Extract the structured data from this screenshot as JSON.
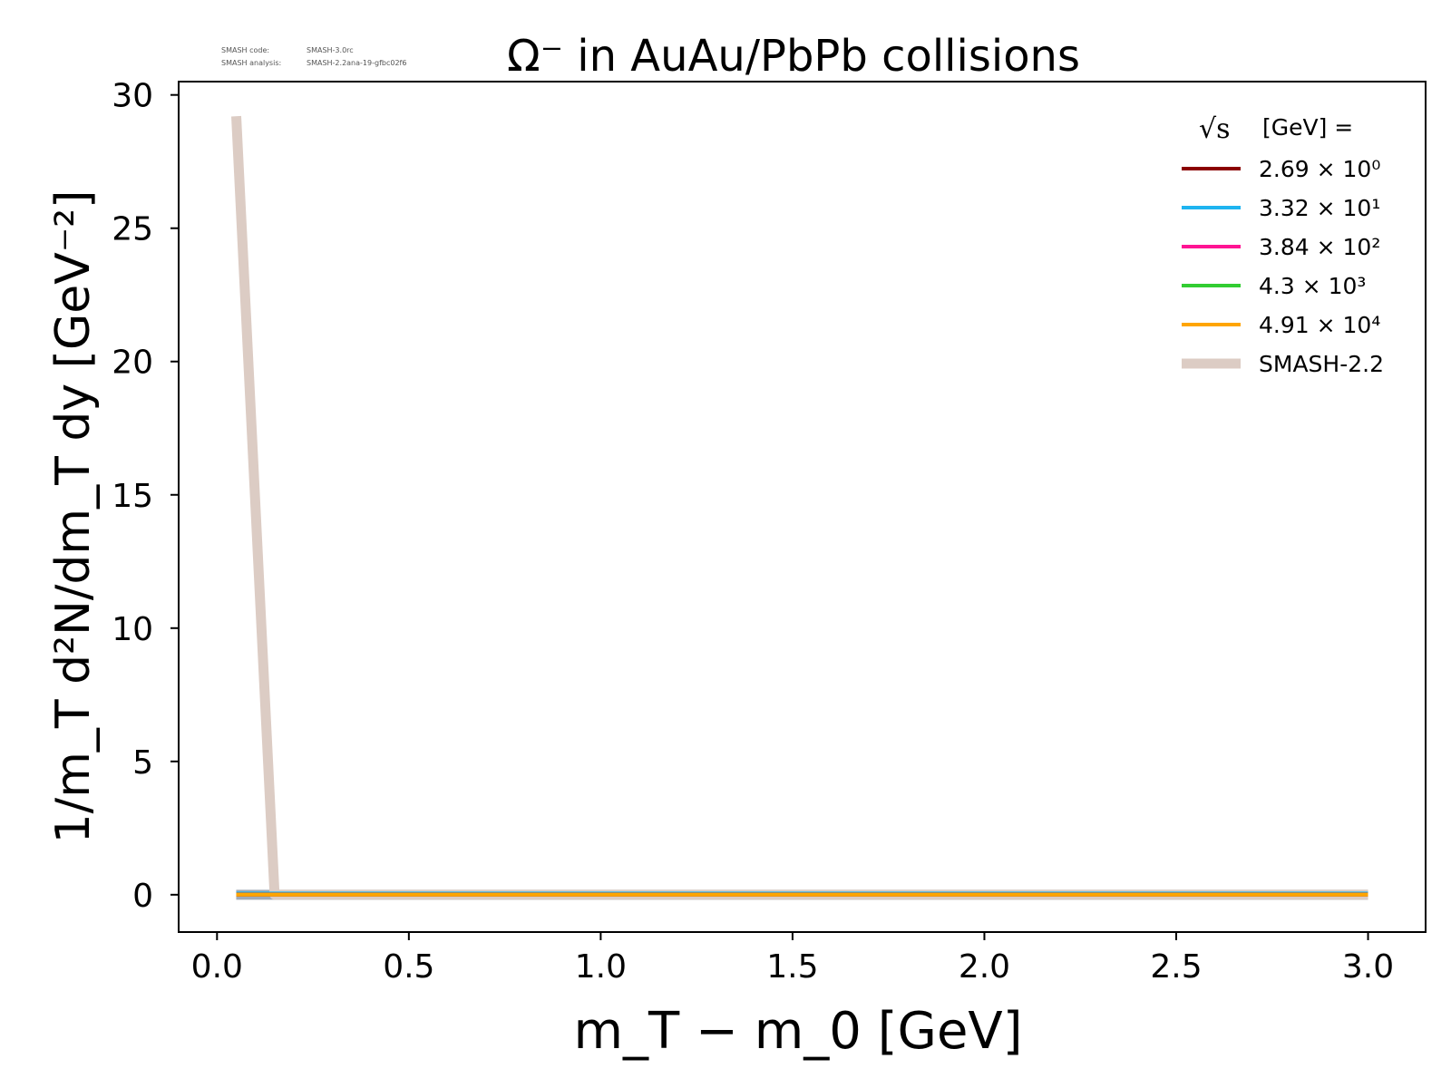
{
  "meta": {
    "code_label": "SMASH code:",
    "code_value": "SMASH-3.0rc",
    "analysis_label": "SMASH analysis:",
    "analysis_value": "SMASH-2.2ana-19-gfbc02f6"
  },
  "chart_data": {
    "type": "line",
    "title": "Ω⁻ in AuAu/PbPb collisions",
    "xlabel": "m_T − m_0 [GeV]",
    "ylabel": "1/m_T d²N/dm_T dy [GeV⁻²]",
    "xlim": [
      -0.1,
      3.15
    ],
    "ylim": [
      -1.4,
      30.5
    ],
    "xticks": [
      0.0,
      0.5,
      1.0,
      1.5,
      2.0,
      2.5,
      3.0
    ],
    "xtick_labels": [
      "0.0",
      "0.5",
      "1.0",
      "1.5",
      "2.0",
      "2.5",
      "3.0"
    ],
    "yticks": [
      0,
      5,
      10,
      15,
      20,
      25,
      30
    ],
    "ytick_labels": [
      "0",
      "5",
      "10",
      "15",
      "20",
      "25",
      "30"
    ],
    "grid": false,
    "legend": {
      "placement": "top-right",
      "title": "[GeV] =",
      "title_symbol": "√s"
    },
    "series": [
      {
        "name": "2.69 × 10⁰",
        "color": "#8b0000",
        "width": 4,
        "x": [
          0.05,
          0.15,
          0.5,
          1.0,
          1.5,
          2.0,
          2.5,
          3.0
        ],
        "y": [
          0,
          0,
          0,
          0,
          0,
          0,
          0,
          0
        ]
      },
      {
        "name": "3.32 × 10¹",
        "color": "#1eb4f0",
        "width": 4,
        "x": [
          0.05,
          3.0
        ],
        "y": [
          0.05,
          0.05
        ]
      },
      {
        "name": "3.84 × 10²",
        "color": "#ff1493",
        "width": 4,
        "x": [
          0.05,
          3.0
        ],
        "y": [
          0.02,
          0.02
        ]
      },
      {
        "name": "4.3 × 10³",
        "color": "#32cd32",
        "width": 4,
        "x": [
          0.05,
          3.0
        ],
        "y": [
          0.01,
          0.01
        ]
      },
      {
        "name": "4.91 × 10⁴",
        "color": "#ffa500",
        "width": 4,
        "x": [
          0.05,
          3.0
        ],
        "y": [
          0.0,
          0.0
        ]
      },
      {
        "name": "SMASH-2.2",
        "color": "#dcccc4",
        "width": 11,
        "x": [
          0.05,
          0.15,
          0.25,
          0.5,
          1.0,
          1.5,
          2.0,
          2.5,
          3.0
        ],
        "y": [
          29.2,
          0,
          0,
          0,
          0,
          0,
          0,
          0,
          0
        ]
      }
    ],
    "overlay_band_color": "#a0aab8"
  }
}
